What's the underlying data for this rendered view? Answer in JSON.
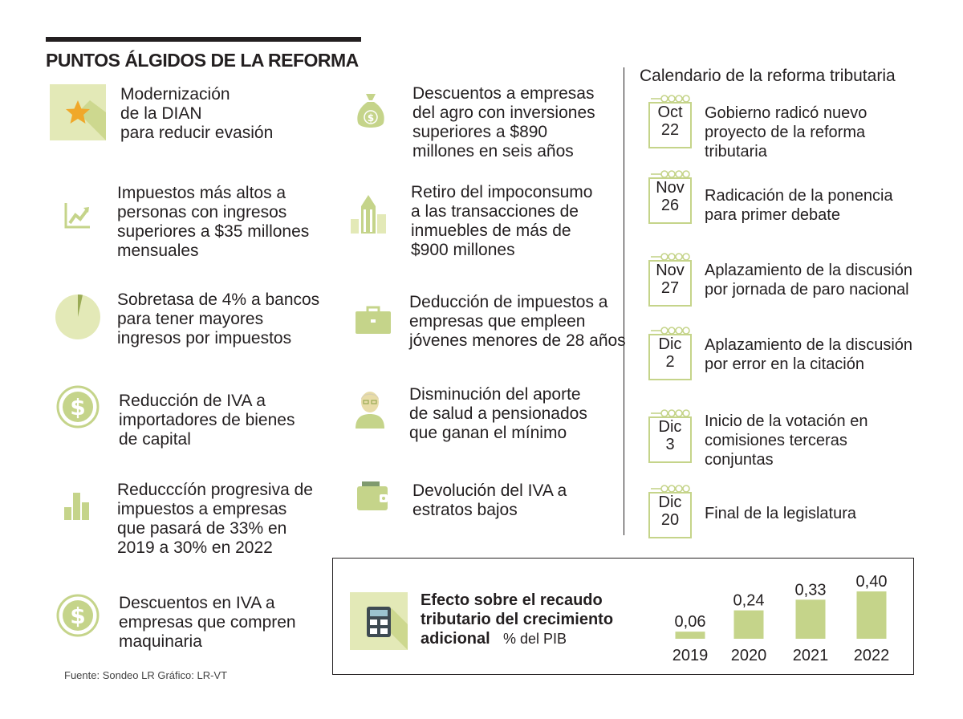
{
  "title": "PUNTOS ÁLGIDOS DE LA REFORMA",
  "colors": {
    "accent": "#c5d48a",
    "accent_light": "#e3e9b7",
    "accent_dark": "#9aab55",
    "star": "#f0a82a",
    "text": "#231f20"
  },
  "points_left": [
    {
      "icon": "star-icon",
      "text": "Modernización\nde la DIAN\npara reducir evasión"
    },
    {
      "icon": "growth-chart-icon",
      "text": "Impuestos más altos a\npersonas con ingresos\nsuperiores a $35 millones\nmensuales"
    },
    {
      "icon": "pie-icon",
      "text": "Sobretasa de 4% a bancos\npara tener mayores\ningresos por impuestos"
    },
    {
      "icon": "dollar-coin-icon",
      "text": "Reducción de IVA a\nimportadores de bienes\nde capital"
    },
    {
      "icon": "bars-icon",
      "text": "Reducccíón progresiva de\nimpuestos a empresas\nque pasará de 33% en\n2019 a 30% en 2022"
    },
    {
      "icon": "dollar-coin-icon",
      "text": "Descuentos en IVA a\nempresas que compren\nmaquinaria"
    }
  ],
  "points_right": [
    {
      "icon": "money-bag-icon",
      "text": "Descuentos a empresas\ndel agro con inversiones\nsuperiores a $890\nmillones en seis años"
    },
    {
      "icon": "building-icon",
      "text": "Retiro del impoconsumo\na las transacciones de\ninmuebles de más de\n$900 millones"
    },
    {
      "icon": "briefcase-icon",
      "text": "Deducción de impuestos a\nempresas que empleen\njóvenes menores de 28 años"
    },
    {
      "icon": "elderly-person-icon",
      "text": "Disminución del aporte\nde salud a pensionados\nque ganan el mínimo"
    },
    {
      "icon": "wallet-icon",
      "text": "Devolución del IVA a\nestratos bajos"
    }
  ],
  "calendar": {
    "title": "Calendario de la reforma tributaria",
    "events": [
      {
        "month": "Oct",
        "day": "22",
        "text": "Gobierno radicó nuevo\nproyecto de la reforma\ntributaria"
      },
      {
        "month": "Nov",
        "day": "26",
        "text": "Radicación de la ponencia\npara primer debate"
      },
      {
        "month": "Nov",
        "day": "27",
        "text": "Aplazamiento de la discusión\npor jornada de paro nacional"
      },
      {
        "month": "Dic",
        "day": "2",
        "text": "Aplazamiento de la discusión\npor error en la citación"
      },
      {
        "month": "Dic",
        "day": "3",
        "text": "Inicio de la votación en\ncomisiones terceras\nconjuntas"
      },
      {
        "month": "Dic",
        "day": "20",
        "text": "Final de la legislatura"
      }
    ]
  },
  "chart_data": {
    "type": "bar",
    "title": "Efecto sobre el recaudo\ntributario del crecimiento\nadicional",
    "unit": "% del PIB",
    "categories": [
      "2019",
      "2020",
      "2021",
      "2022"
    ],
    "values": [
      0.06,
      0.24,
      0.33,
      0.4
    ],
    "value_labels": [
      "0,06",
      "0,24",
      "0,33",
      "0,40"
    ],
    "ylim": [
      0,
      0.4
    ],
    "grid": false,
    "color": "#c5d48a"
  },
  "source": "Fuente: Sondeo LR  Gráfico: LR-VT"
}
